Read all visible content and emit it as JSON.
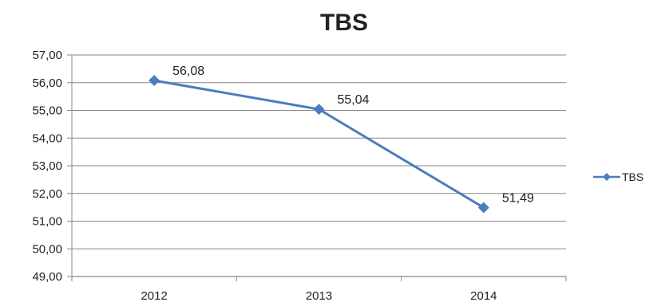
{
  "chart_data": {
    "type": "line",
    "title": "TBS",
    "categories": [
      "2012",
      "2013",
      "2014"
    ],
    "series": [
      {
        "name": "TBS",
        "values": [
          56.08,
          55.04,
          51.49
        ],
        "color": "#4a7ebb"
      }
    ],
    "data_labels": [
      "56,08",
      "55,04",
      "51,49"
    ],
    "y_ticks": [
      49,
      50,
      51,
      52,
      53,
      54,
      55,
      56,
      57
    ],
    "y_tick_labels": [
      "49,00",
      "50,00",
      "51,00",
      "52,00",
      "53,00",
      "54,00",
      "55,00",
      "56,00",
      "57,00"
    ],
    "ylim": [
      49,
      57
    ],
    "grid": true,
    "legend": "right",
    "marker": "diamond"
  }
}
